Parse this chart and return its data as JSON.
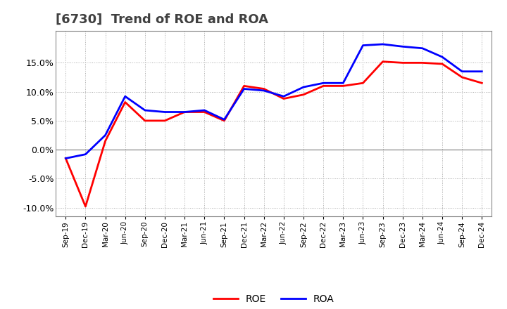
{
  "title": "[6730]  Trend of ROE and ROA",
  "x_labels": [
    "Sep-19",
    "Dec-19",
    "Mar-20",
    "Jun-20",
    "Sep-20",
    "Dec-20",
    "Mar-21",
    "Jun-21",
    "Sep-21",
    "Dec-21",
    "Mar-22",
    "Jun-22",
    "Sep-22",
    "Dec-22",
    "Mar-23",
    "Jun-23",
    "Sep-23",
    "Dec-23",
    "Mar-24",
    "Jun-24",
    "Sep-24",
    "Dec-24"
  ],
  "roe": [
    -1.5,
    -9.8,
    1.5,
    8.2,
    5.0,
    5.0,
    6.5,
    6.5,
    5.0,
    11.0,
    10.5,
    8.8,
    9.5,
    11.0,
    11.0,
    11.5,
    15.2,
    15.0,
    15.0,
    14.8,
    12.5,
    11.5
  ],
  "roa": [
    -1.5,
    -0.8,
    2.5,
    9.2,
    6.8,
    6.5,
    6.5,
    6.8,
    5.2,
    10.5,
    10.2,
    9.2,
    10.8,
    11.5,
    11.5,
    18.0,
    18.2,
    17.8,
    17.5,
    16.0,
    13.5,
    13.5
  ],
  "roe_color": "#FF0000",
  "roa_color": "#0000FF",
  "ylim": [
    -11.5,
    20.5
  ],
  "yticks": [
    -10.0,
    -5.0,
    0.0,
    5.0,
    10.0,
    15.0
  ],
  "background_color": "#FFFFFF",
  "grid_color": "#AAAAAA",
  "title_color": "#404040",
  "title_fontsize": 13,
  "line_width": 2.0
}
